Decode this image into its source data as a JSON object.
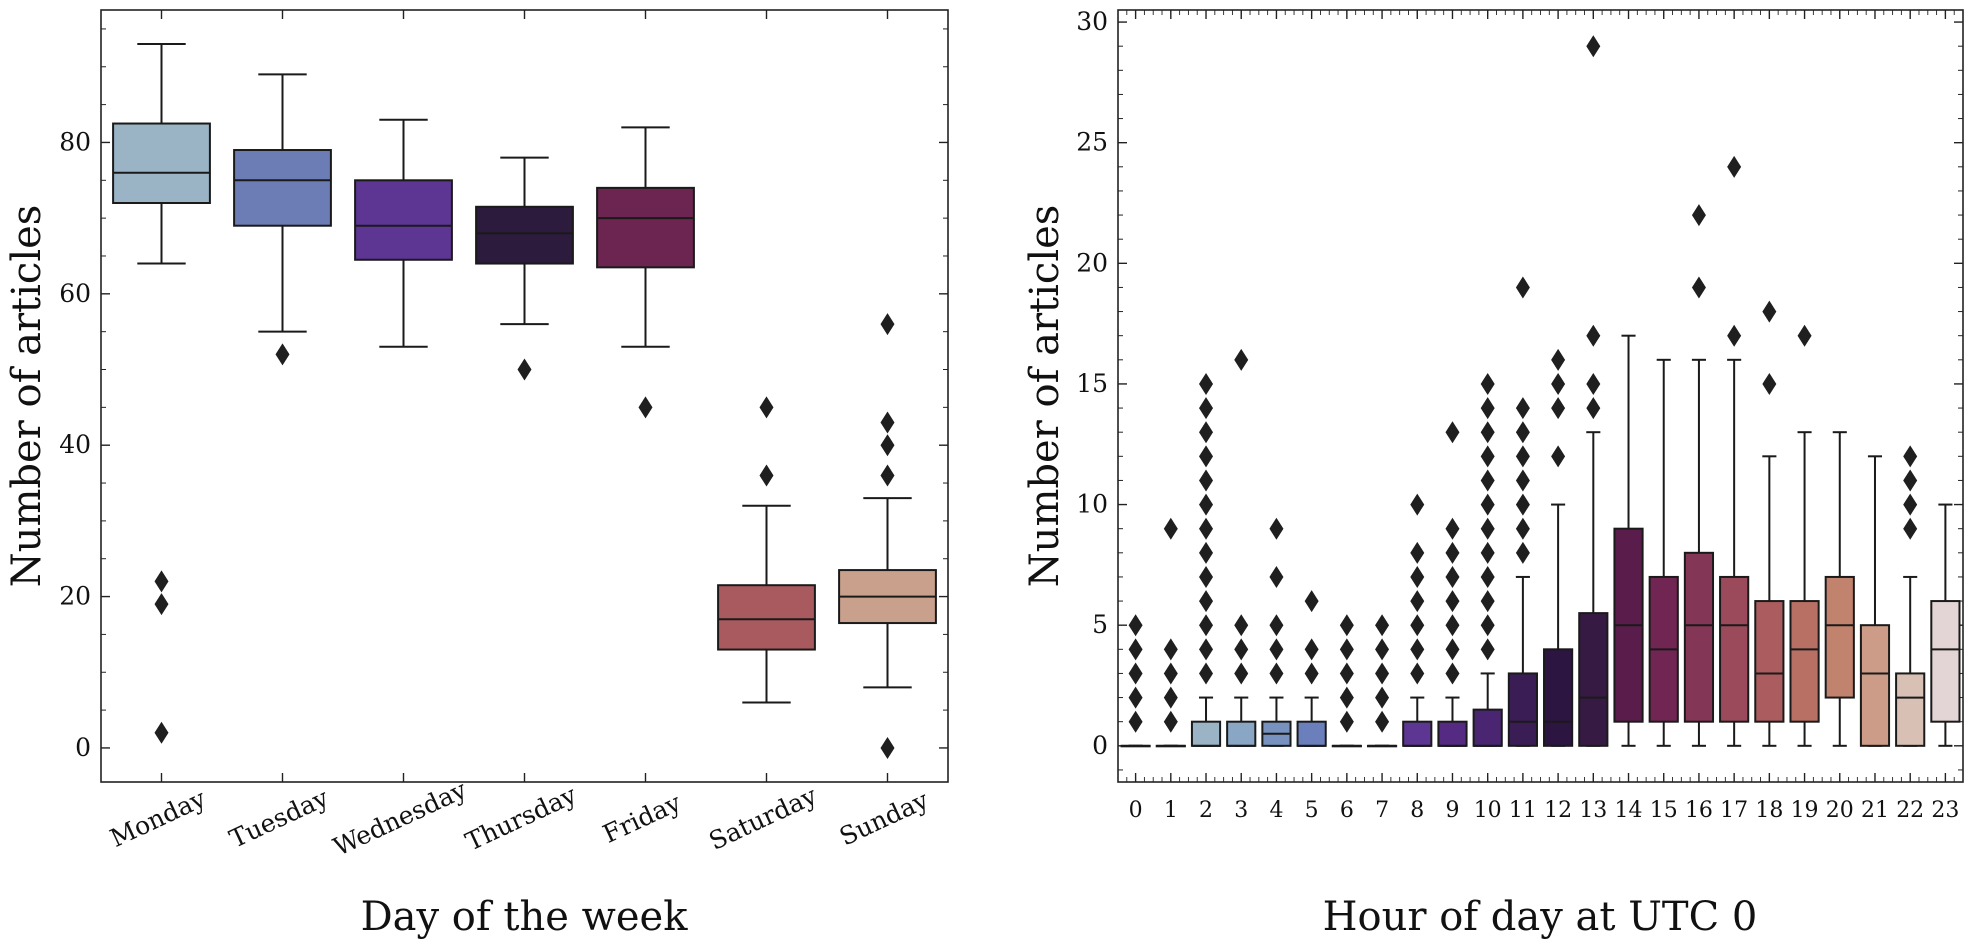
{
  "chart_data": [
    {
      "type": "box",
      "xlabel": "Day of the week",
      "ylabel": "Number of articles",
      "ylim": [
        -4.5,
        97.5
      ],
      "yticks": [
        0,
        20,
        40,
        60,
        80
      ],
      "categories": [
        "Monday",
        "Tuesday",
        "Wednesday",
        "Thursday",
        "Friday",
        "Saturday",
        "Sunday"
      ],
      "boxes": [
        {
          "q1": 72,
          "median": 76,
          "q3": 82.5,
          "whislo": 64,
          "whishi": 93,
          "fliers": [
            22,
            19,
            2
          ]
        },
        {
          "q1": 69,
          "median": 75,
          "q3": 79,
          "whislo": 55,
          "whishi": 89,
          "fliers": [
            52
          ]
        },
        {
          "q1": 64.5,
          "median": 69,
          "q3": 75,
          "whislo": 53,
          "whishi": 83,
          "fliers": []
        },
        {
          "q1": 64,
          "median": 68,
          "q3": 71.5,
          "whislo": 56,
          "whishi": 78,
          "fliers": [
            50
          ]
        },
        {
          "q1": 63.5,
          "median": 70,
          "q3": 74,
          "whislo": 53,
          "whishi": 82,
          "fliers": [
            45
          ]
        },
        {
          "q1": 13,
          "median": 17,
          "q3": 21.5,
          "whislo": 6,
          "whishi": 32,
          "fliers": [
            45,
            36
          ]
        },
        {
          "q1": 16.5,
          "median": 20,
          "q3": 23.5,
          "whislo": 8,
          "whishi": 33,
          "fliers": [
            56,
            43,
            40,
            36,
            0
          ]
        }
      ],
      "colors": [
        "#9ab4c6",
        "#6c7db5",
        "#5d3592",
        "#2c1b3d",
        "#6b2550",
        "#a85a5e",
        "#c9a08b"
      ]
    },
    {
      "type": "box",
      "xlabel": "Hour of day at UTC 0",
      "ylabel": "Number of articles",
      "ylim": [
        -1.5,
        30.5
      ],
      "yticks": [
        0,
        5,
        10,
        15,
        20,
        25,
        30
      ],
      "categories": [
        "0",
        "1",
        "2",
        "3",
        "4",
        "5",
        "6",
        "7",
        "8",
        "9",
        "10",
        "11",
        "12",
        "13",
        "14",
        "15",
        "16",
        "17",
        "18",
        "19",
        "20",
        "21",
        "22",
        "23"
      ],
      "boxes": [
        {
          "q1": 0,
          "median": 0,
          "q3": 0,
          "whislo": 0,
          "whishi": 0,
          "fliers": [
            1,
            2,
            3,
            4,
            5
          ]
        },
        {
          "q1": 0,
          "median": 0,
          "q3": 0,
          "whislo": 0,
          "whishi": 0,
          "fliers": [
            1,
            2,
            3,
            4,
            9
          ]
        },
        {
          "q1": 0,
          "median": 0,
          "q3": 1,
          "whislo": 0,
          "whishi": 2,
          "fliers": [
            3,
            4,
            5,
            6,
            7,
            8,
            9,
            10,
            11,
            12,
            13,
            14,
            15
          ]
        },
        {
          "q1": 0,
          "median": 0,
          "q3": 1,
          "whislo": 0,
          "whishi": 2,
          "fliers": [
            3,
            4,
            5,
            16
          ]
        },
        {
          "q1": 0,
          "median": 0.5,
          "q3": 1,
          "whislo": 0,
          "whishi": 2,
          "fliers": [
            3,
            4,
            5,
            7,
            9
          ]
        },
        {
          "q1": 0,
          "median": 0,
          "q3": 1,
          "whislo": 0,
          "whishi": 2,
          "fliers": [
            3,
            4,
            6
          ]
        },
        {
          "q1": 0,
          "median": 0,
          "q3": 0,
          "whislo": 0,
          "whishi": 0,
          "fliers": [
            1,
            2,
            3,
            4,
            5
          ]
        },
        {
          "q1": 0,
          "median": 0,
          "q3": 0,
          "whislo": 0,
          "whishi": 0,
          "fliers": [
            1,
            2,
            3,
            4,
            5
          ]
        },
        {
          "q1": 0,
          "median": 0,
          "q3": 1,
          "whislo": 0,
          "whishi": 2,
          "fliers": [
            3,
            4,
            5,
            6,
            7,
            8,
            10
          ]
        },
        {
          "q1": 0,
          "median": 0,
          "q3": 1,
          "whislo": 0,
          "whishi": 2,
          "fliers": [
            3,
            4,
            5,
            6,
            7,
            8,
            9,
            13
          ]
        },
        {
          "q1": 0,
          "median": 0,
          "q3": 1.5,
          "whislo": 0,
          "whishi": 3,
          "fliers": [
            4,
            5,
            6,
            7,
            8,
            9,
            10,
            11,
            12,
            13,
            14,
            15
          ]
        },
        {
          "q1": 0,
          "median": 1,
          "q3": 3,
          "whislo": 0,
          "whishi": 7,
          "fliers": [
            8,
            9,
            10,
            11,
            12,
            13,
            14,
            19
          ]
        },
        {
          "q1": 0,
          "median": 1,
          "q3": 4,
          "whislo": 0,
          "whishi": 10,
          "fliers": [
            12,
            14,
            15,
            16
          ]
        },
        {
          "q1": 0,
          "median": 2,
          "q3": 5.5,
          "whislo": 0,
          "whishi": 13,
          "fliers": [
            14,
            15,
            17,
            29
          ]
        },
        {
          "q1": 1,
          "median": 5,
          "q3": 9,
          "whislo": 0,
          "whishi": 17,
          "fliers": []
        },
        {
          "q1": 1,
          "median": 4,
          "q3": 7,
          "whislo": 0,
          "whishi": 16,
          "fliers": []
        },
        {
          "q1": 1,
          "median": 5,
          "q3": 8,
          "whislo": 0,
          "whishi": 16,
          "fliers": [
            19,
            22
          ]
        },
        {
          "q1": 1,
          "median": 5,
          "q3": 7,
          "whislo": 0,
          "whishi": 16,
          "fliers": [
            17,
            24
          ]
        },
        {
          "q1": 1,
          "median": 3,
          "q3": 6,
          "whislo": 0,
          "whishi": 12,
          "fliers": [
            15,
            18
          ]
        },
        {
          "q1": 1,
          "median": 4,
          "q3": 6,
          "whislo": 0,
          "whishi": 13,
          "fliers": [
            17
          ]
        },
        {
          "q1": 2,
          "median": 5,
          "q3": 7,
          "whislo": 0,
          "whishi": 13,
          "fliers": []
        },
        {
          "q1": 0,
          "median": 3,
          "q3": 5,
          "whislo": 0,
          "whishi": 12,
          "fliers": []
        },
        {
          "q1": 0,
          "median": 2,
          "q3": 3,
          "whislo": 0,
          "whishi": 7,
          "fliers": [
            9,
            10,
            11,
            12
          ]
        },
        {
          "q1": 1,
          "median": 4,
          "q3": 6,
          "whislo": 0,
          "whishi": 10,
          "fliers": []
        }
      ],
      "colors": [
        "#d8d0d0",
        "#c9c6cc",
        "#9ab4c6",
        "#89a6c4",
        "#7892c0",
        "#6b7fbc",
        "#6a60b2",
        "#624aa4",
        "#5d3592",
        "#542a83",
        "#4a2572",
        "#3a1d55",
        "#2c1540",
        "#371a43",
        "#5a1d4b",
        "#702552",
        "#833655",
        "#9a4a5b",
        "#aa5c5e",
        "#b87064",
        "#c2836e",
        "#cc9c88",
        "#d8c1b4",
        "#e3d5d5"
      ]
    }
  ]
}
